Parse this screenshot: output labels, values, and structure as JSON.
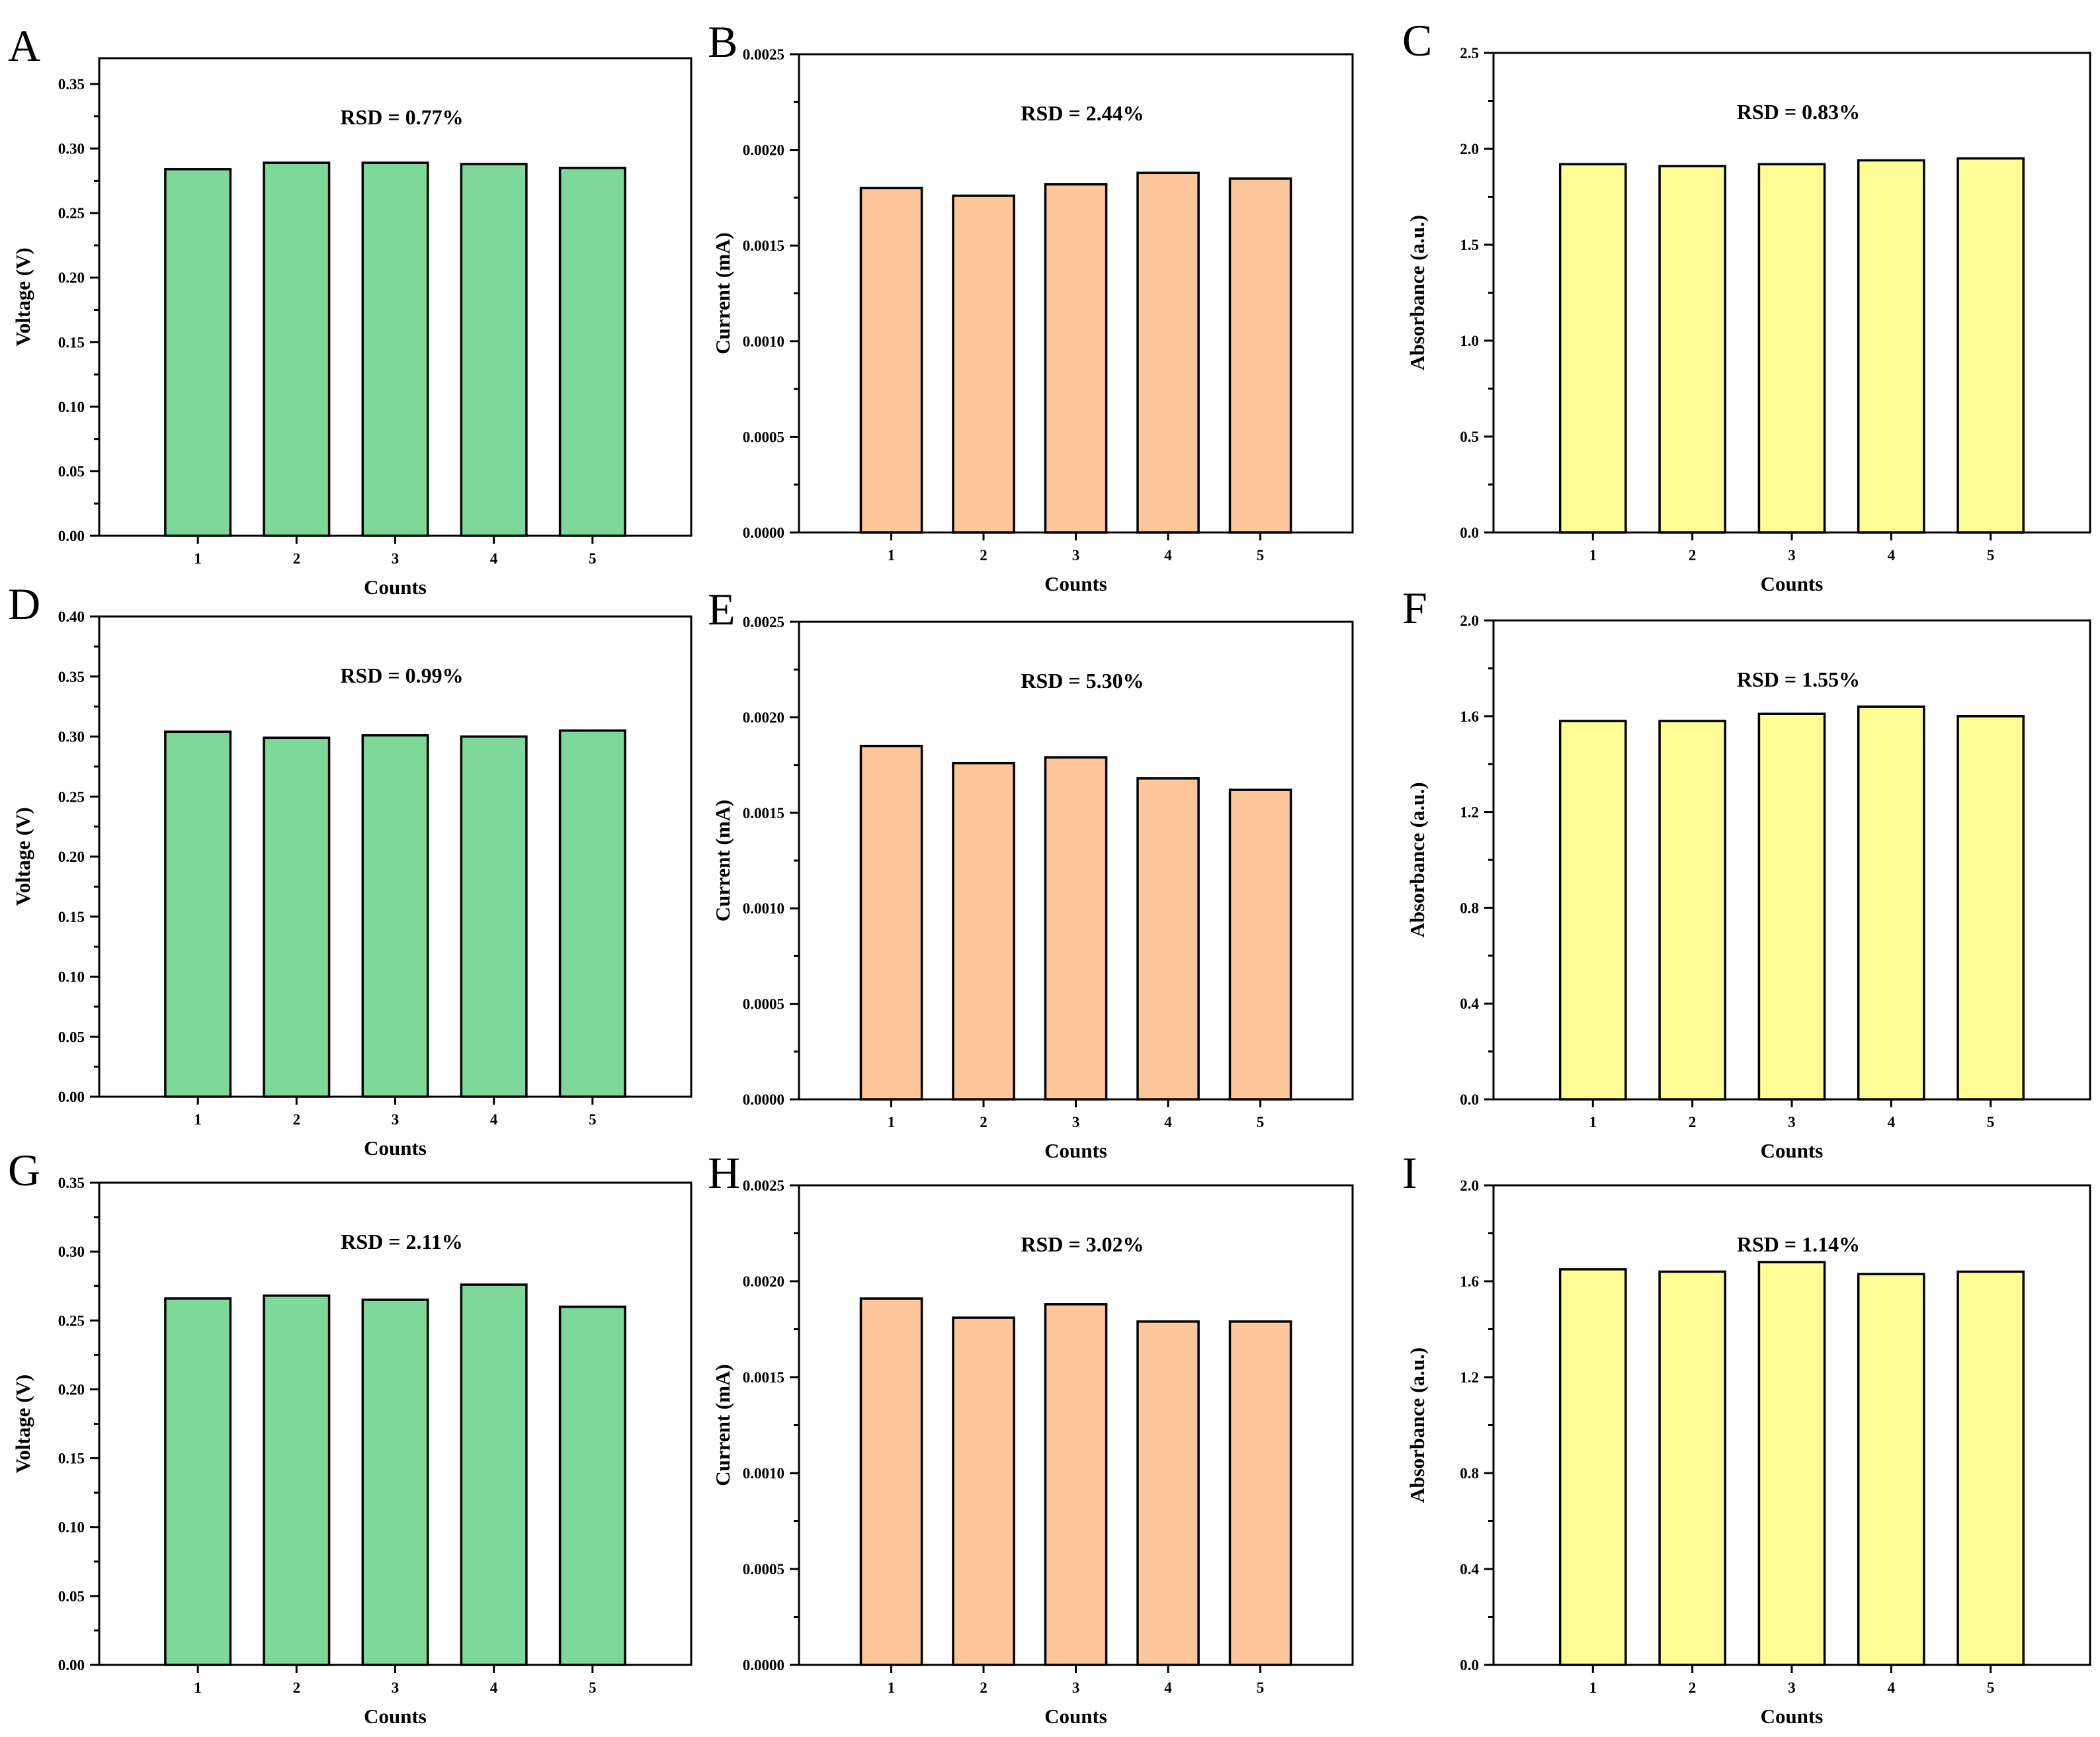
{
  "colors": {
    "green": "#7dd89a",
    "orange": "#fdc79a",
    "yellow": "#fdfd96"
  },
  "chart_data": [
    {
      "panel": "A",
      "type": "bar",
      "categories": [
        "1",
        "2",
        "3",
        "4",
        "5"
      ],
      "values": [
        0.284,
        0.289,
        0.289,
        0.288,
        0.285
      ],
      "xlabel": "Counts",
      "ylabel": "Voltage (V)",
      "ylim": [
        0,
        0.37
      ],
      "yticks": [
        "0.00",
        "0.05",
        "0.10",
        "0.15",
        "0.20",
        "0.25",
        "0.30",
        "0.35"
      ],
      "annotation": "RSD = 0.77%",
      "color": "green"
    },
    {
      "panel": "B",
      "type": "bar",
      "categories": [
        "1",
        "2",
        "3",
        "4",
        "5"
      ],
      "values": [
        0.0018,
        0.00176,
        0.00182,
        0.00188,
        0.00185
      ],
      "xlabel": "Counts",
      "ylabel": "Current (mA)",
      "ylim": [
        0,
        0.0025
      ],
      "yticks": [
        "0.0000",
        "0.0005",
        "0.0010",
        "0.0015",
        "0.0020",
        "0.0025"
      ],
      "annotation": "RSD = 2.44%",
      "color": "orange"
    },
    {
      "panel": "C",
      "type": "bar",
      "categories": [
        "1",
        "2",
        "3",
        "4",
        "5"
      ],
      "values": [
        1.92,
        1.91,
        1.92,
        1.94,
        1.95
      ],
      "xlabel": "Counts",
      "ylabel": "Absorbance (a.u.)",
      "ylim": [
        0,
        2.5
      ],
      "yticks": [
        "0.0",
        "0.5",
        "1.0",
        "1.5",
        "2.0",
        "2.5"
      ],
      "annotation": "RSD = 0.83%",
      "color": "yellow"
    },
    {
      "panel": "D",
      "type": "bar",
      "categories": [
        "1",
        "2",
        "3",
        "4",
        "5"
      ],
      "values": [
        0.304,
        0.299,
        0.301,
        0.3,
        0.305
      ],
      "xlabel": "Counts",
      "ylabel": "Voltage (V)",
      "ylim": [
        0,
        0.4
      ],
      "yticks": [
        "0.00",
        "0.05",
        "0.10",
        "0.15",
        "0.20",
        "0.25",
        "0.30",
        "0.35",
        "0.40"
      ],
      "annotation": "RSD = 0.99%",
      "color": "green"
    },
    {
      "panel": "E",
      "type": "bar",
      "categories": [
        "1",
        "2",
        "3",
        "4",
        "5"
      ],
      "values": [
        0.00185,
        0.00176,
        0.00179,
        0.00168,
        0.00162
      ],
      "xlabel": "Counts",
      "ylabel": "Current (mA)",
      "ylim": [
        0,
        0.0025
      ],
      "yticks": [
        "0.0000",
        "0.0005",
        "0.0010",
        "0.0015",
        "0.0020",
        "0.0025"
      ],
      "annotation": "RSD = 5.30%",
      "color": "orange"
    },
    {
      "panel": "F",
      "type": "bar",
      "categories": [
        "1",
        "2",
        "3",
        "4",
        "5"
      ],
      "values": [
        1.58,
        1.58,
        1.61,
        1.64,
        1.6
      ],
      "xlabel": "Counts",
      "ylabel": "Absorbance (a.u.)",
      "ylim": [
        0,
        2.0
      ],
      "yticks": [
        "0.0",
        "0.4",
        "0.8",
        "1.2",
        "1.6",
        "2.0"
      ],
      "annotation": "RSD = 1.55%",
      "color": "yellow"
    },
    {
      "panel": "G",
      "type": "bar",
      "categories": [
        "1",
        "2",
        "3",
        "4",
        "5"
      ],
      "values": [
        0.266,
        0.268,
        0.265,
        0.276,
        0.26
      ],
      "xlabel": "Counts",
      "ylabel": "Voltage (V)",
      "ylim": [
        0,
        0.35
      ],
      "yticks": [
        "0.00",
        "0.05",
        "0.10",
        "0.15",
        "0.20",
        "0.25",
        "0.30",
        "0.35"
      ],
      "annotation": "RSD = 2.11%",
      "color": "green"
    },
    {
      "panel": "H",
      "type": "bar",
      "categories": [
        "1",
        "2",
        "3",
        "4",
        "5"
      ],
      "values": [
        0.00191,
        0.00181,
        0.00188,
        0.00179,
        0.00179
      ],
      "xlabel": "Counts",
      "ylabel": "Current (mA)",
      "ylim": [
        0,
        0.0025
      ],
      "yticks": [
        "0.0000",
        "0.0005",
        "0.0010",
        "0.0015",
        "0.0020",
        "0.0025"
      ],
      "annotation": "RSD = 3.02%",
      "color": "orange"
    },
    {
      "panel": "I",
      "type": "bar",
      "categories": [
        "1",
        "2",
        "3",
        "4",
        "5"
      ],
      "values": [
        1.65,
        1.64,
        1.68,
        1.63,
        1.64
      ],
      "xlabel": "Counts",
      "ylabel": "Absorbance (a.u.)",
      "ylim": [
        0,
        2.0
      ],
      "yticks": [
        "0.0",
        "0.4",
        "0.8",
        "1.2",
        "1.6",
        "2.0"
      ],
      "annotation": "RSD = 1.14%",
      "color": "yellow"
    }
  ]
}
